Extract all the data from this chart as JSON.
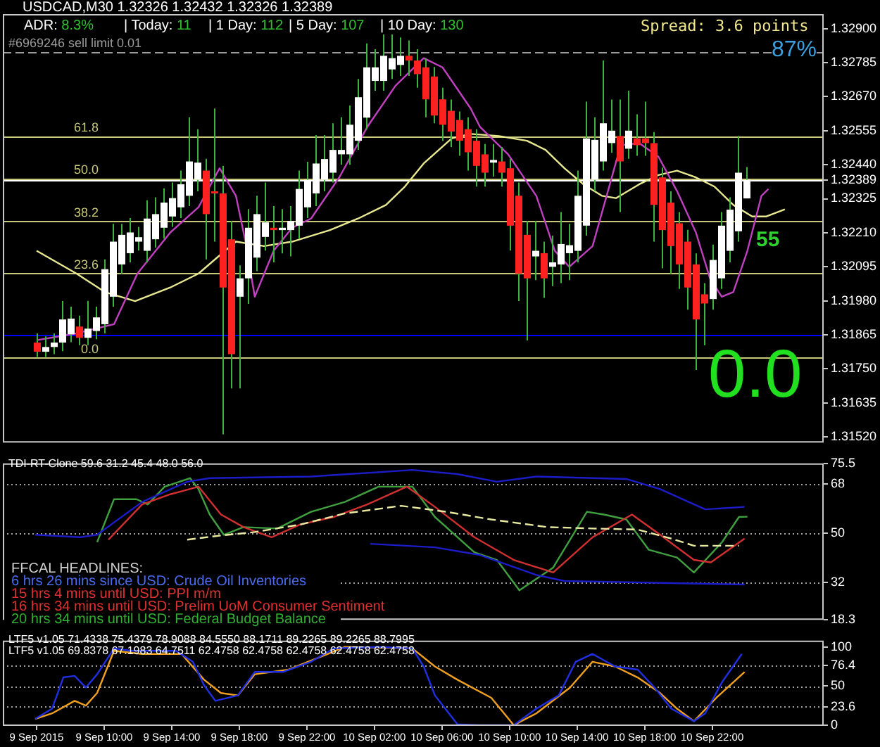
{
  "chart_data": [
    {
      "type": "candlestick",
      "title": "USDCAD,M30 1.32326 1.32432 1.32326 1.32389",
      "x": [
        "2015-09-09T06:00",
        "2015-09-09T06:30",
        "2015-09-09T07:00",
        "2015-09-09T07:30",
        "2015-09-09T08:00",
        "2015-09-09T08:30",
        "2015-09-09T09:00",
        "2015-09-09T09:30",
        "2015-09-09T10:00",
        "2015-09-09T10:30",
        "2015-09-09T11:00",
        "2015-09-09T11:30",
        "2015-09-09T12:00",
        "2015-09-09T12:30",
        "2015-09-09T13:00",
        "2015-09-09T13:30",
        "2015-09-09T14:00",
        "2015-09-09T14:30",
        "2015-09-09T15:00",
        "2015-09-09T15:30",
        "2015-09-09T16:00",
        "2015-09-09T16:30",
        "2015-09-09T17:00",
        "2015-09-09T17:30",
        "2015-09-09T18:00",
        "2015-09-09T18:30",
        "2015-09-09T19:00",
        "2015-09-09T19:30",
        "2015-09-09T20:00",
        "2015-09-09T20:30",
        "2015-09-09T21:00",
        "2015-09-09T21:30",
        "2015-09-09T22:00",
        "2015-09-09T22:30",
        "2015-09-09T23:00",
        "2015-09-09T23:30",
        "2015-09-10T00:00",
        "2015-09-10T00:30",
        "2015-09-10T01:00",
        "2015-09-10T01:30",
        "2015-09-10T02:00",
        "2015-09-10T02:30",
        "2015-09-10T03:00",
        "2015-09-10T03:30",
        "2015-09-10T04:00",
        "2015-09-10T04:30",
        "2015-09-10T05:00",
        "2015-09-10T05:30",
        "2015-09-10T06:00",
        "2015-09-10T06:30",
        "2015-09-10T07:00",
        "2015-09-10T07:30",
        "2015-09-10T08:00",
        "2015-09-10T08:30",
        "2015-09-10T09:00",
        "2015-09-10T09:30",
        "2015-09-10T10:00",
        "2015-09-10T10:30",
        "2015-09-10T11:00",
        "2015-09-10T11:30",
        "2015-09-10T12:00",
        "2015-09-10T12:30",
        "2015-09-10T13:00",
        "2015-09-10T13:30",
        "2015-09-10T14:00",
        "2015-09-10T14:30",
        "2015-09-10T15:00",
        "2015-09-10T15:30",
        "2015-09-10T16:00",
        "2015-09-10T16:30",
        "2015-09-10T17:00",
        "2015-09-10T17:30",
        "2015-09-10T18:00",
        "2015-09-10T18:30",
        "2015-09-10T19:00",
        "2015-09-10T19:30",
        "2015-09-10T20:00",
        "2015-09-10T20:30",
        "2015-09-10T21:00",
        "2015-09-10T21:30",
        "2015-09-10T22:00",
        "2015-09-10T22:30",
        "2015-09-10T23:00",
        "2015-09-10T23:30",
        "2015-09-11T00:00"
      ],
      "ohlc": [
        [
          1.31839,
          1.3187,
          1.3179,
          1.31808
        ],
        [
          1.31808,
          1.3186,
          1.3179,
          1.31824
        ],
        [
          1.31824,
          1.3187,
          1.318,
          1.31839
        ],
        [
          1.31839,
          1.31979,
          1.3181,
          1.31917
        ],
        [
          1.31867,
          1.3196,
          1.3184,
          1.3192
        ],
        [
          1.31893,
          1.3193,
          1.3183,
          1.31855
        ],
        [
          1.31855,
          1.3198,
          1.3183,
          1.31886
        ],
        [
          1.31878,
          1.3196,
          1.3185,
          1.31924
        ],
        [
          1.31901,
          1.3212,
          1.3187,
          1.32087
        ],
        [
          1.31994,
          1.3224,
          1.3196,
          1.3218
        ],
        [
          1.32103,
          1.3224,
          1.3207,
          1.32203
        ],
        [
          1.32141,
          1.3226,
          1.3211,
          1.32211
        ],
        [
          1.3218,
          1.3223,
          1.3215,
          1.32195
        ],
        [
          1.32149,
          1.3232,
          1.3211,
          1.32258
        ],
        [
          1.32188,
          1.3233,
          1.3216,
          1.32273
        ],
        [
          1.32227,
          1.3236,
          1.3219,
          1.32312
        ],
        [
          1.32265,
          1.3238,
          1.3223,
          1.32327
        ],
        [
          1.32296,
          1.3242,
          1.3226,
          1.32374
        ],
        [
          1.32335,
          1.326,
          1.323,
          1.32451
        ],
        [
          1.32389,
          1.3256,
          1.3235,
          1.32447
        ],
        [
          1.3242,
          1.3246,
          1.3212,
          1.32273
        ],
        [
          1.3235,
          1.3263,
          1.3218,
          1.32343
        ],
        [
          1.32343,
          1.32436,
          1.31529,
          1.32025
        ],
        [
          1.32188,
          1.3225,
          1.31684,
          1.318
        ],
        [
          1.31994,
          1.321,
          1.31684,
          1.32056
        ],
        [
          1.32056,
          1.3229,
          1.3197,
          1.32227
        ],
        [
          1.32126,
          1.32335,
          1.3208,
          1.32273
        ],
        [
          1.32196,
          1.3238,
          1.3215,
          1.32245
        ],
        [
          1.32227,
          1.323,
          1.3211,
          1.32219
        ],
        [
          1.32219,
          1.3229,
          1.3214,
          1.32227
        ],
        [
          1.32219,
          1.323,
          1.3213,
          1.3225
        ],
        [
          1.32234,
          1.3242,
          1.3219,
          1.32358
        ],
        [
          1.32296,
          1.3245,
          1.3226,
          1.32389
        ],
        [
          1.32343,
          1.3254,
          1.323,
          1.32444
        ],
        [
          1.32389,
          1.3254,
          1.3235,
          1.32459
        ],
        [
          1.32413,
          1.3258,
          1.3238,
          1.3249
        ],
        [
          1.32475,
          1.326,
          1.3244,
          1.3249
        ],
        [
          1.32475,
          1.3264,
          1.3244,
          1.32575
        ],
        [
          1.32521,
          1.3273,
          1.3249,
          1.32668
        ],
        [
          1.32599,
          1.3285,
          1.3256,
          1.32769
        ],
        [
          1.32723,
          1.3283,
          1.3269,
          1.32769
        ],
        [
          1.32723,
          1.3288,
          1.3269,
          1.32808
        ],
        [
          1.32762,
          1.3288,
          1.3273,
          1.328
        ],
        [
          1.32777,
          1.3287,
          1.3274,
          1.32808
        ],
        [
          1.32808,
          1.3286,
          1.3274,
          1.32792
        ],
        [
          1.32792,
          1.3283,
          1.327,
          1.32746
        ],
        [
          1.32769,
          1.328,
          1.326,
          1.32661
        ],
        [
          1.32738,
          1.3277,
          1.3258,
          1.32606
        ],
        [
          1.32661,
          1.327,
          1.3252,
          1.32575
        ],
        [
          1.32622,
          1.3266,
          1.325,
          1.32552
        ],
        [
          1.32591,
          1.3262,
          1.3247,
          1.32521
        ],
        [
          1.3256,
          1.326,
          1.3242,
          1.32482
        ],
        [
          1.32521,
          1.3256,
          1.32366,
          1.32436
        ],
        [
          1.32475,
          1.3251,
          1.32366,
          1.32413
        ],
        [
          1.32447,
          1.3251,
          1.324,
          1.32456
        ],
        [
          1.32451,
          1.325,
          1.32366,
          1.32413
        ],
        [
          1.32428,
          1.3246,
          1.3215,
          1.32234
        ],
        [
          1.32335,
          1.3238,
          1.31979,
          1.32072
        ],
        [
          1.32203,
          1.3225,
          1.31846,
          1.32056
        ],
        [
          1.3213,
          1.3225,
          1.3205,
          1.32149
        ],
        [
          1.32141,
          1.3218,
          1.3199,
          1.32056
        ],
        [
          1.32095,
          1.322,
          1.3203,
          1.3211
        ],
        [
          1.32103,
          1.3228,
          1.3204,
          1.32172
        ],
        [
          1.32141,
          1.3224,
          1.3205,
          1.32168
        ],
        [
          1.32149,
          1.3242,
          1.3211,
          1.32335
        ],
        [
          1.32234,
          1.32653,
          1.322,
          1.32529
        ],
        [
          1.32389,
          1.326,
          1.3235,
          1.32524
        ],
        [
          1.32451,
          1.32792,
          1.3242,
          1.3258
        ],
        [
          1.32513,
          1.3266,
          1.3248,
          1.32555
        ],
        [
          1.32537,
          1.3266,
          1.3228,
          1.32451
        ],
        [
          1.32494,
          1.3269,
          1.3246,
          1.32555
        ],
        [
          1.32529,
          1.3261,
          1.3247,
          1.32506
        ],
        [
          1.32529,
          1.32653,
          1.3247,
          1.32513
        ],
        [
          1.32513,
          1.3255,
          1.3218,
          1.32304
        ],
        [
          1.32397,
          1.3243,
          1.3209,
          1.32219
        ],
        [
          1.32312,
          1.3235,
          1.3207,
          1.32165
        ],
        [
          1.32242,
          1.3228,
          1.3202,
          1.32103
        ],
        [
          1.3218,
          1.3222,
          1.3195,
          1.32025
        ],
        [
          1.32103,
          1.3214,
          1.31746,
          1.31917
        ],
        [
          1.32002,
          1.3204,
          1.3183,
          1.31971
        ],
        [
          1.31986,
          1.3217,
          1.3195,
          1.32118
        ],
        [
          1.32056,
          1.3228,
          1.3202,
          1.32234
        ],
        [
          1.32149,
          1.3233,
          1.3211,
          1.32288
        ],
        [
          1.32215,
          1.32537,
          1.3218,
          1.32413
        ],
        [
          1.32326,
          1.32432,
          1.32326,
          1.32389
        ]
      ],
      "series": [
        {
          "type": "line",
          "color": "#c040c0",
          "x": [
            "2015-09-09T06:00",
            "2015-09-09T08:22",
            "2015-09-09T10:35",
            "2015-09-09T11:58",
            "2015-09-09T13:55",
            "2015-09-09T15:35",
            "2015-09-09T16:50",
            "2015-09-09T17:48",
            "2015-09-09T18:22",
            "2015-09-09T18:55",
            "2015-09-09T20:02",
            "2015-09-09T21:08",
            "2015-09-09T22:15",
            "2015-09-09T23:55",
            "2015-09-10T01:35",
            "2015-09-10T03:15",
            "2015-09-10T04:55",
            "2015-09-10T06:02",
            "2015-09-10T07:42",
            "2015-09-10T08:15",
            "2015-09-10T09:55",
            "2015-09-10T11:35",
            "2015-09-10T12:41",
            "2015-09-10T13:32",
            "2015-09-10T14:55",
            "2015-09-10T15:45",
            "2015-09-10T16:35",
            "2015-09-10T17:41",
            "2015-09-10T18:49",
            "2015-09-10T19:55",
            "2015-09-10T21:02",
            "2015-09-10T21:52",
            "2015-09-10T22:34",
            "2015-09-10T23:15",
            "2015-09-11T00:05",
            "2015-09-11T00:55",
            "2015-09-11T01:20"
          ],
          "values": [
            1.31847,
            1.3187,
            1.31901,
            1.32072,
            1.32211,
            1.32296,
            1.32428,
            1.32335,
            1.3218,
            1.31994,
            1.32149,
            1.32227,
            1.32258,
            1.32397,
            1.32568,
            1.32707,
            1.328,
            1.32769,
            1.3263,
            1.32568,
            1.32475,
            1.32335,
            1.32149,
            1.32095,
            1.32165,
            1.32335,
            1.32506,
            1.32513,
            1.32467,
            1.32351,
            1.32211,
            1.32056,
            1.31994,
            1.3201,
            1.32149,
            1.32335,
            1.32358
          ]
        },
        {
          "type": "line",
          "color": "#e8e890",
          "x": [
            "2015-09-09T06:00",
            "2015-09-09T08:22",
            "2015-09-09T10:02",
            "2015-09-09T11:50",
            "2015-09-09T13:55",
            "2015-09-09T15:35",
            "2015-09-09T16:41",
            "2015-09-09T17:48",
            "2015-09-09T19:28",
            "2015-09-09T21:08",
            "2015-09-09T23:22",
            "2015-09-10T01:02",
            "2015-09-10T02:41",
            "2015-09-10T03:48",
            "2015-09-10T04:55",
            "2015-09-10T06:35",
            "2015-09-10T07:42",
            "2015-09-10T09:22",
            "2015-09-10T11:02",
            "2015-09-10T12:08",
            "2015-09-10T13:15",
            "2015-09-10T14:22",
            "2015-09-10T15:28",
            "2015-09-10T16:18",
            "2015-09-10T17:41",
            "2015-09-10T18:49",
            "2015-09-10T19:55",
            "2015-09-10T21:02",
            "2015-09-10T22:08",
            "2015-09-10T23:15",
            "2015-09-11T00:22",
            "2015-09-11T01:11",
            "2015-09-11T02:18"
          ],
          "values": [
            1.32149,
            1.32072,
            1.3201,
            1.31979,
            1.32025,
            1.32072,
            1.32126,
            1.3218,
            1.32165,
            1.3218,
            1.32219,
            1.32258,
            1.32304,
            1.32366,
            1.32444,
            1.32529,
            1.32544,
            1.32537,
            1.32521,
            1.3249,
            1.32428,
            1.32374,
            1.32335,
            1.32327,
            1.32374,
            1.32405,
            1.3242,
            1.32397,
            1.32366,
            1.32304,
            1.32265,
            1.32265,
            1.32289
          ]
        }
      ],
      "xlim": [
        "2015-09-09T04:00",
        "2015-09-11T04:36"
      ],
      "ylim": [
        1.31501,
        1.32949
      ],
      "yticks": [
        {
          "value": 1.329,
          "label": "1.32900"
        },
        {
          "value": 1.32785,
          "label": "1.32785"
        },
        {
          "value": 1.3267,
          "label": "1.32670"
        },
        {
          "value": 1.32555,
          "label": "1.32555"
        },
        {
          "value": 1.3244,
          "label": "1.32440"
        },
        {
          "value": 1.32389,
          "label": "1.32389"
        },
        {
          "value": 1.32325,
          "label": "1.32325"
        },
        {
          "value": 1.3221,
          "label": "1.32210"
        },
        {
          "value": 1.32095,
          "label": "1.32095"
        },
        {
          "value": 1.3198,
          "label": "1.31980"
        },
        {
          "value": 1.31865,
          "label": "1.31865"
        },
        {
          "value": 1.3175,
          "label": "1.31750"
        },
        {
          "value": 1.31635,
          "label": "1.31635"
        },
        {
          "value": 1.3152,
          "label": "1.31520"
        }
      ],
      "tick_labels": "y",
      "ref_lines": [
        {
          "axis": "y",
          "value": 1.32823,
          "label": "#6969246 sell limit 0.01",
          "color": "#9a9a9a",
          "line_style": "dashed"
        },
        {
          "axis": "y",
          "value": 1.32537,
          "color": "#c8c878"
        },
        {
          "axis": "y",
          "value": 1.32394,
          "color": "#c8c878"
        },
        {
          "axis": "y",
          "value": 1.3225,
          "color": "#c8c878"
        },
        {
          "axis": "y",
          "value": 1.32075,
          "color": "#c8c878"
        },
        {
          "axis": "y",
          "value": 1.31789,
          "color": "#c8c878"
        },
        {
          "axis": "y",
          "value": 1.32389,
          "color": "#ffffff"
        },
        {
          "axis": "y",
          "value": 1.31865,
          "color": "#0000ff"
        }
      ],
      "annotations": [
        "ADR: 8.3%",
        "| Today: 11",
        "| 1 Day: 112",
        "| 5 Day: 107",
        "| 10 Day: 130",
        "Spread: 3.6 points",
        "87%",
        "55",
        "0.0",
        {
          "text": "61.8",
          "x": "2015-09-09T09:40",
          "y": 1.32537
        },
        {
          "text": "50.0",
          "x": "2015-09-09T09:40",
          "y": 1.32394
        },
        {
          "text": "38.2",
          "x": "2015-09-09T09:40",
          "y": 1.3225
        },
        {
          "text": "23.6",
          "x": "2015-09-09T09:40",
          "y": 1.32075
        },
        {
          "text": "0.0",
          "x": "2015-09-09T09:40",
          "y": 1.31789
        }
      ]
    },
    {
      "type": "line",
      "title": "TDI-RT-Clone 59.6 31.2 45.4 48.0 56.0",
      "series": [
        {
          "color": "#1c1cc8",
          "x": [
            "2015-09-09T05:55",
            "2015-09-09T08:35",
            "2015-09-09T09:35",
            "2015-09-09T12:15",
            "2015-09-09T14:55",
            "2015-09-09T16:15",
            "2015-09-09T22:15",
            "2015-09-10T04:15",
            "2015-09-10T06:55",
            "2015-09-10T09:15",
            "2015-09-10T11:35",
            "2015-09-10T16:55",
            "2015-09-10T18:55",
            "2015-09-10T21:35",
            "2015-09-10T23:55"
          ],
          "values": [
            49.4,
            48.5,
            49.4,
            61.4,
            68.8,
            70.1,
            70.7,
            73.1,
            71.6,
            68.8,
            70.7,
            69.8,
            66.1,
            58.7,
            59.6
          ]
        },
        {
          "color": "#1c1cc8",
          "x": [
            "2015-09-10T01:45",
            "2015-09-10T05:35",
            "2015-09-10T08:15",
            "2015-09-10T11:35",
            "2015-09-10T13:15",
            "2015-09-10T23:55"
          ],
          "values": [
            46.1,
            44.8,
            42.0,
            34.7,
            32.5,
            31.2
          ]
        },
        {
          "color": "#e8e8a0",
          "line_style": "dashed",
          "x": [
            "2015-09-09T14:55",
            "2015-09-09T16:35",
            "2015-09-09T18:55",
            "2015-09-09T21:35",
            "2015-09-10T00:15",
            "2015-09-10T03:35",
            "2015-09-10T06:15",
            "2015-09-10T08:55",
            "2015-09-10T12:15",
            "2015-09-10T14:55",
            "2015-09-10T17:35",
            "2015-09-10T19:35",
            "2015-09-10T20:55",
            "2015-09-10T23:35"
          ],
          "values": [
            47.6,
            48.9,
            50.4,
            53.1,
            57.2,
            60.0,
            57.8,
            55.0,
            52.2,
            51.7,
            51.3,
            48.0,
            45.4,
            45.4
          ]
        },
        {
          "color": "#d03030",
          "x": [
            "2015-09-09T10:15",
            "2015-09-09T12:15",
            "2015-09-09T13:55",
            "2015-09-09T15:35",
            "2015-09-09T16:55",
            "2015-09-09T18:15",
            "2015-09-09T19:55",
            "2015-09-09T21:35",
            "2015-09-09T23:35",
            "2015-09-10T01:35",
            "2015-09-10T03:55",
            "2015-09-10T05:35",
            "2015-09-10T07:55",
            "2015-09-10T10:15",
            "2015-09-10T12:35",
            "2015-09-10T14:55",
            "2015-09-10T17:15",
            "2015-09-10T18:55",
            "2015-09-10T20:55",
            "2015-09-10T21:55",
            "2015-09-10T23:55"
          ],
          "values": [
            47.6,
            60.5,
            64.2,
            67.0,
            56.8,
            52.2,
            48.5,
            53.1,
            55.9,
            60.5,
            67.0,
            59.6,
            48.5,
            40.2,
            35.6,
            48.5,
            56.8,
            49.4,
            40.2,
            39.3,
            48.0
          ]
        },
        {
          "color": "#40a040",
          "x": [
            "2015-09-09T09:35",
            "2015-09-09T10:35",
            "2015-09-09T11:55",
            "2015-09-09T12:35",
            "2015-09-09T13:35",
            "2015-09-09T15:05",
            "2015-09-09T15:35",
            "2015-09-09T16:15",
            "2015-09-09T17:05",
            "2015-09-09T18:15",
            "2015-09-09T20:15",
            "2015-09-09T22:15",
            "2015-09-10T00:15",
            "2015-09-10T02:15",
            "2015-09-10T04:15",
            "2015-09-10T05:35",
            "2015-09-10T07:55",
            "2015-09-10T09:15",
            "2015-09-10T10:35",
            "2015-09-10T12:35",
            "2015-09-10T14:35",
            "2015-09-10T15:35",
            "2015-09-10T16:55",
            "2015-09-10T18:15",
            "2015-09-10T19:55",
            "2015-09-10T20:55",
            "2015-09-10T22:35",
            "2015-09-10T23:35",
            "2015-09-11T00:05"
          ],
          "values": [
            46.7,
            62.4,
            62.4,
            60.5,
            67.0,
            70.1,
            66.1,
            56.8,
            49.4,
            52.2,
            51.7,
            57.8,
            61.4,
            67.0,
            67.0,
            55.9,
            43.0,
            40.2,
            29.1,
            37.4,
            57.8,
            56.8,
            55.0,
            43.9,
            41.1,
            35.6,
            46.7,
            55.9,
            56.0
          ]
        }
      ],
      "xlim": [
        "2015-09-09T04:00",
        "2015-09-11T04:36"
      ],
      "ylim": [
        18.3,
        75.5
      ],
      "yticks": [
        75.5,
        68,
        50,
        32,
        18.3
      ],
      "tick_labels": "y",
      "ref_lines": [
        {
          "axis": "y",
          "value": 68,
          "color": "#a0a0a0",
          "line_style": "dotted"
        },
        {
          "axis": "y",
          "value": 50,
          "color": "#a0a0a0",
          "line_style": "dotted"
        },
        {
          "axis": "y",
          "value": 32,
          "color": "#a0a0a0",
          "line_style": "dotted"
        }
      ],
      "annotations": [
        "FFCAL HEADLINES:",
        "6 hrs 26 mins since USD: Crude Oil Inventories",
        "15 hrs 4 mins until USD: PPI m/m",
        "16 hrs 34 mins until USD: Prelim UoM Consumer Sentiment",
        "20 hrs 34 mins until USD: Federal Budget Balance"
      ]
    },
    {
      "type": "line",
      "title": "LTF5 v1.05 71.4338 75.4379 78.9088 84.5550 88.1711 89.2265 89.2265 88.7995",
      "series": [
        {
          "color": "#2030e0",
          "x": [
            "2015-09-09T05:55",
            "2015-09-09T06:55",
            "2015-09-09T07:35",
            "2015-09-09T08:15",
            "2015-09-09T08:55",
            "2015-09-09T09:35",
            "2015-09-09T10:35",
            "2015-09-09T11:35",
            "2015-09-09T14:15",
            "2015-09-09T15:15",
            "2015-09-09T15:55",
            "2015-09-09T16:35",
            "2015-09-09T17:55",
            "2015-09-09T18:55",
            "2015-09-09T20:35",
            "2015-09-09T22:15",
            "2015-09-09T23:35",
            "2015-09-10T02:15",
            "2015-09-10T04:15",
            "2015-09-10T04:55",
            "2015-09-10T05:35",
            "2015-09-10T06:55",
            "2015-09-10T08:15",
            "2015-09-10T10:15",
            "2015-09-10T11:35",
            "2015-09-10T12:55",
            "2015-09-10T13:55",
            "2015-09-10T14:55",
            "2015-09-10T16:15",
            "2015-09-10T17:35",
            "2015-09-10T18:35",
            "2015-09-10T19:35",
            "2015-09-10T20:55",
            "2015-09-10T21:35",
            "2015-09-10T22:35",
            "2015-09-10T23:45"
          ],
          "values": [
            8,
            21,
            61,
            63,
            48,
            65,
            98,
            95,
            95,
            81,
            51,
            31,
            38,
            68,
            68,
            81,
            98,
            100,
            98,
            75,
            38,
            1,
            0,
            0,
            21,
            38,
            81,
            91,
            75,
            71,
            48,
            21,
            5,
            15,
            55,
            91
          ]
        },
        {
          "color": "#f0a020",
          "x": [
            "2015-09-09T05:55",
            "2015-09-09T06:55",
            "2015-09-09T08:15",
            "2015-09-09T08:55",
            "2015-09-09T09:35",
            "2015-09-09T10:35",
            "2015-09-09T12:15",
            "2015-09-09T14:35",
            "2015-09-09T15:55",
            "2015-09-09T16:55",
            "2015-09-09T17:55",
            "2015-09-09T18:55",
            "2015-09-09T20:55",
            "2015-09-09T23:15",
            "2015-09-10T00:15",
            "2015-09-10T04:15",
            "2015-09-10T05:35",
            "2015-09-10T06:55",
            "2015-09-10T08:55",
            "2015-09-10T10:15",
            "2015-09-10T11:35",
            "2015-09-10T13:35",
            "2015-09-10T14:55",
            "2015-09-10T16:15",
            "2015-09-10T17:35",
            "2015-09-10T18:55",
            "2015-09-10T19:55",
            "2015-09-10T20:55",
            "2015-09-10T22:15",
            "2015-09-10T23:55"
          ],
          "values": [
            8,
            15,
            31,
            25,
            41,
            95,
            91,
            91,
            58,
            41,
            38,
            65,
            71,
            91,
            100,
            98,
            75,
            58,
            35,
            0,
            15,
            48,
            81,
            75,
            61,
            41,
            21,
            5,
            35,
            68
          ]
        }
      ],
      "xlim": [
        "2015-09-09T04:00",
        "2015-09-11T04:36"
      ],
      "ylim": [
        -1,
        108
      ],
      "yticks": [
        100,
        76.4,
        50,
        23.6,
        0
      ],
      "xticks": [
        {
          "value": "2015-09-09T06:00",
          "label": "9 Sep 2015"
        },
        {
          "value": "2015-09-09T10:00",
          "label": "9 Sep 10:00"
        },
        {
          "value": "2015-09-09T14:00",
          "label": "9 Sep 14:00"
        },
        {
          "value": "2015-09-09T18:00",
          "label": "9 Sep 18:00"
        },
        {
          "value": "2015-09-09T22:00",
          "label": "9 Sep 22:00"
        },
        {
          "value": "2015-09-10T02:00",
          "label": "10 Sep 02:00"
        },
        {
          "value": "2015-09-10T06:00",
          "label": "10 Sep 06:00"
        },
        {
          "value": "2015-09-10T10:00",
          "label": "10 Sep 10:00"
        },
        {
          "value": "2015-09-10T14:00",
          "label": "10 Sep 14:00"
        },
        {
          "value": "2015-09-10T18:00",
          "label": "10 Sep 18:00"
        },
        {
          "value": "2015-09-10T22:00",
          "label": "10 Sep 22:00"
        }
      ],
      "ref_lines": [
        {
          "axis": "y",
          "value": 76.4,
          "color": "#a0a0a0",
          "line_style": "dotted"
        },
        {
          "axis": "y",
          "value": 50,
          "color": "#a0a0a0",
          "line_style": "dotted"
        },
        {
          "axis": "y",
          "value": 23.6,
          "color": "#a0a0a0",
          "line_style": "dotted"
        }
      ],
      "annotations": [
        "LTF5 v1.05 69.8378 67.1983 64.7511 62.4758 62.4758 62.4758 62.4758 62.4758"
      ]
    }
  ]
}
